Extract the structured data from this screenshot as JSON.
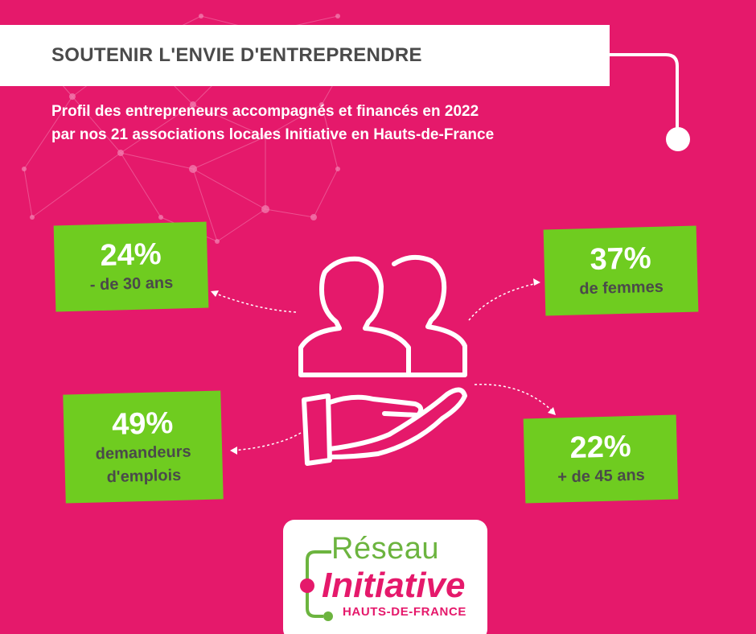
{
  "header": {
    "title": "SOUTENIR L'ENVIE D'ENTREPRENDRE"
  },
  "subtitle": {
    "line1": "Profil des entrepreneurs accompagnés et financés en 2022",
    "line2": "par nos 21 associations locales Initiative en Hauts-de-France"
  },
  "stats": [
    {
      "value": "24%",
      "label": "- de 30 ans"
    },
    {
      "value": "37%",
      "label": "de femmes"
    },
    {
      "value": "49%",
      "label_line1": "demandeurs",
      "label_line2": "d'emplois"
    },
    {
      "value": "22%",
      "label": "+ de 45 ans"
    }
  ],
  "center_icon": "people-in-hand-icon",
  "logo": {
    "line1": "Réseau",
    "line2": "Initiative",
    "line3": "HAUTS-DE-FRANCE"
  },
  "colors": {
    "background": "#e5196b",
    "accent_green": "#6fcc20",
    "logo_green": "#6cb43f",
    "text_dark": "#4a4a4a",
    "white": "#ffffff"
  }
}
